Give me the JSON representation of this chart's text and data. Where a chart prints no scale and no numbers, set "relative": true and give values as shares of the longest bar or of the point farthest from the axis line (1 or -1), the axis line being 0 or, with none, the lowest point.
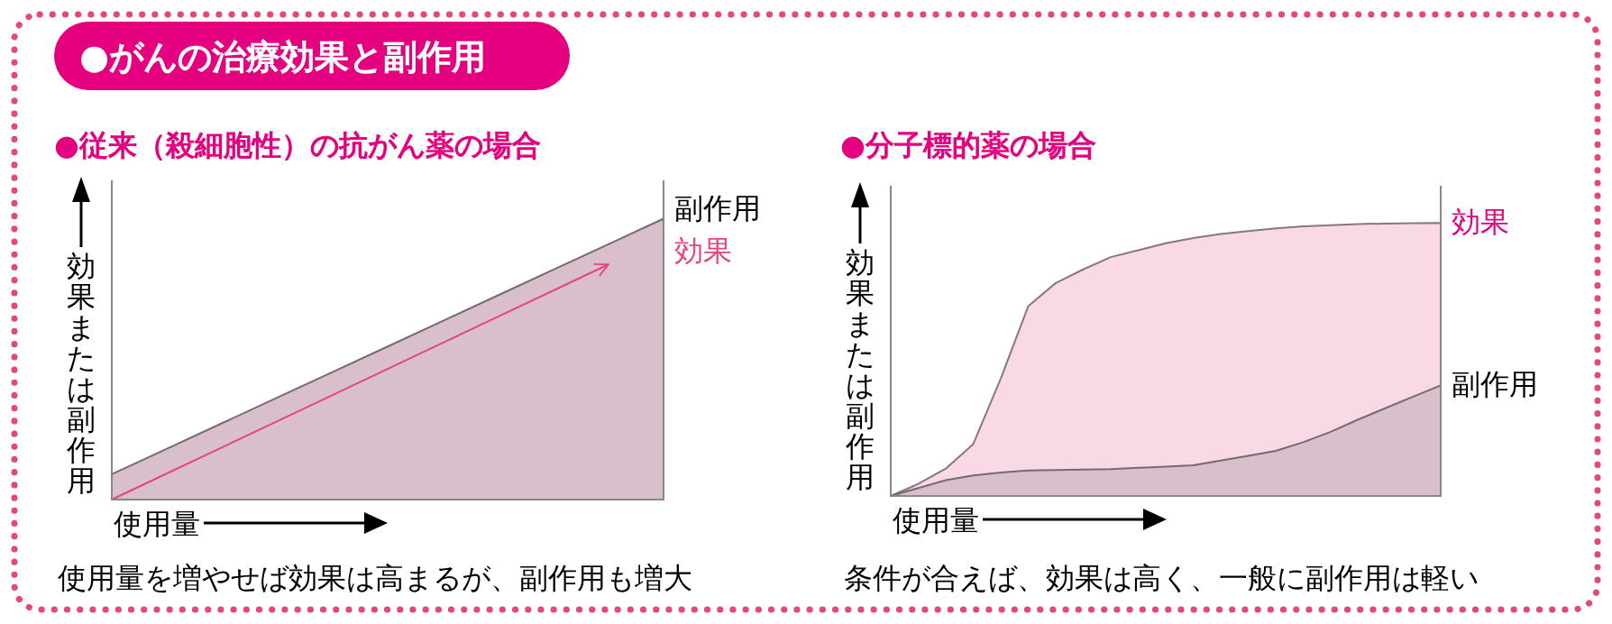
{
  "chart_data": [
    {
      "type": "area",
      "relative": true,
      "title": "●がんの治療効果と副作用",
      "subtitle": "●従来（殺細胞性）の抗がん薬の場合",
      "xlabel": "使用量",
      "ylabel": "効果または副作用",
      "categories": [
        null,
        null,
        null,
        null,
        null,
        null,
        null,
        null,
        null,
        null,
        null
      ],
      "series": [
        {
          "name": "副作用",
          "color": "#d8bfcb",
          "values": [
            0.09,
            0.181,
            0.272,
            0.363,
            0.454,
            0.545,
            0.636,
            0.727,
            0.818,
            0.909,
            1
          ]
        },
        {
          "name": "効果",
          "type": "line",
          "color": "#e5467f",
          "values": [
            0,
            0.093,
            0.186,
            0.279,
            0.372,
            0.465,
            0.558,
            0.651,
            0.744,
            0.837,
            null
          ]
        }
      ],
      "annotations": [
        "使用量を増やせば効果は高まるが、副作用も増大"
      ]
    },
    {
      "type": "area",
      "relative": true,
      "title": "●分子標的薬の場合",
      "xlabel": "使用量",
      "ylabel": "効果または副作用",
      "categories": [
        null,
        null,
        null,
        null,
        null,
        null,
        null,
        null,
        null,
        null,
        null,
        null,
        null,
        null,
        null,
        null,
        null,
        null,
        null,
        null,
        null
      ],
      "series": [
        {
          "name": "効果",
          "color": "#f9d9e5",
          "values": [
            0,
            0.044,
            0.1,
            0.19,
            0.43,
            0.695,
            0.78,
            0.83,
            0.875,
            0.9,
            0.926,
            0.945,
            0.96,
            0.97,
            0.98,
            0.988,
            0.992,
            0.996,
            0.998,
            0.999,
            1
          ]
        },
        {
          "name": "副作用",
          "color": "#d8bfcb",
          "values": [
            0,
            0.029,
            0.058,
            0.075,
            0.086,
            0.093,
            0.095,
            0.097,
            0.098,
            0.103,
            0.107,
            0.112,
            0.13,
            0.147,
            0.165,
            0.197,
            0.235,
            0.28,
            0.322,
            0.364,
            0.405
          ]
        }
      ],
      "annotations": [
        "条件が合えば、効果は高く、一般に副作用は軽い"
      ]
    }
  ]
}
